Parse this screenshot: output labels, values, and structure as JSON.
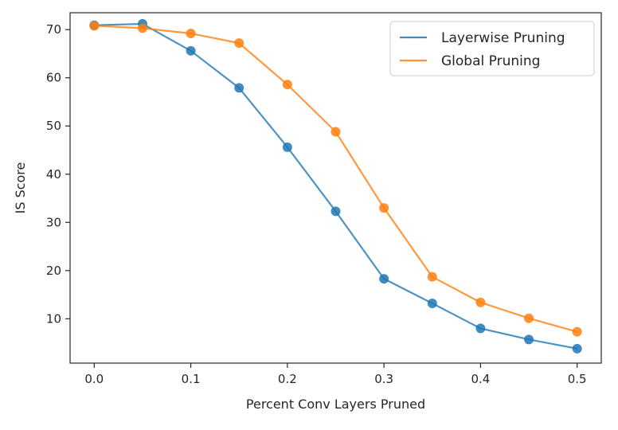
{
  "chart_data": {
    "type": "line",
    "title": "",
    "xlabel": "Percent Conv Layers Pruned",
    "ylabel": "IS Score",
    "x": [
      0.0,
      0.05,
      0.1,
      0.15,
      0.2,
      0.25,
      0.3,
      0.35,
      0.4,
      0.45,
      0.5
    ],
    "xlim": [
      -0.025,
      0.525
    ],
    "ylim": [
      0.8,
      73.5
    ],
    "xticks": [
      0.0,
      0.1,
      0.2,
      0.3,
      0.4,
      0.5
    ],
    "xtick_labels": [
      "0.0",
      "0.1",
      "0.2",
      "0.3",
      "0.4",
      "0.5"
    ],
    "yticks": [
      10,
      20,
      30,
      40,
      50,
      60,
      70
    ],
    "ytick_labels": [
      "10",
      "20",
      "30",
      "40",
      "50",
      "60",
      "70"
    ],
    "grid": false,
    "legend": "top-right",
    "series": [
      {
        "name": "Layerwise Pruning",
        "color": "#1f77b4",
        "values": [
          70.9,
          71.2,
          65.6,
          57.9,
          45.6,
          32.3,
          18.3,
          13.2,
          8.0,
          5.7,
          3.8
        ]
      },
      {
        "name": "Global Pruning",
        "color": "#ff7f0e",
        "values": [
          70.8,
          70.3,
          69.2,
          67.2,
          58.6,
          48.8,
          33.0,
          18.7,
          13.4,
          10.1,
          7.3
        ]
      }
    ]
  }
}
